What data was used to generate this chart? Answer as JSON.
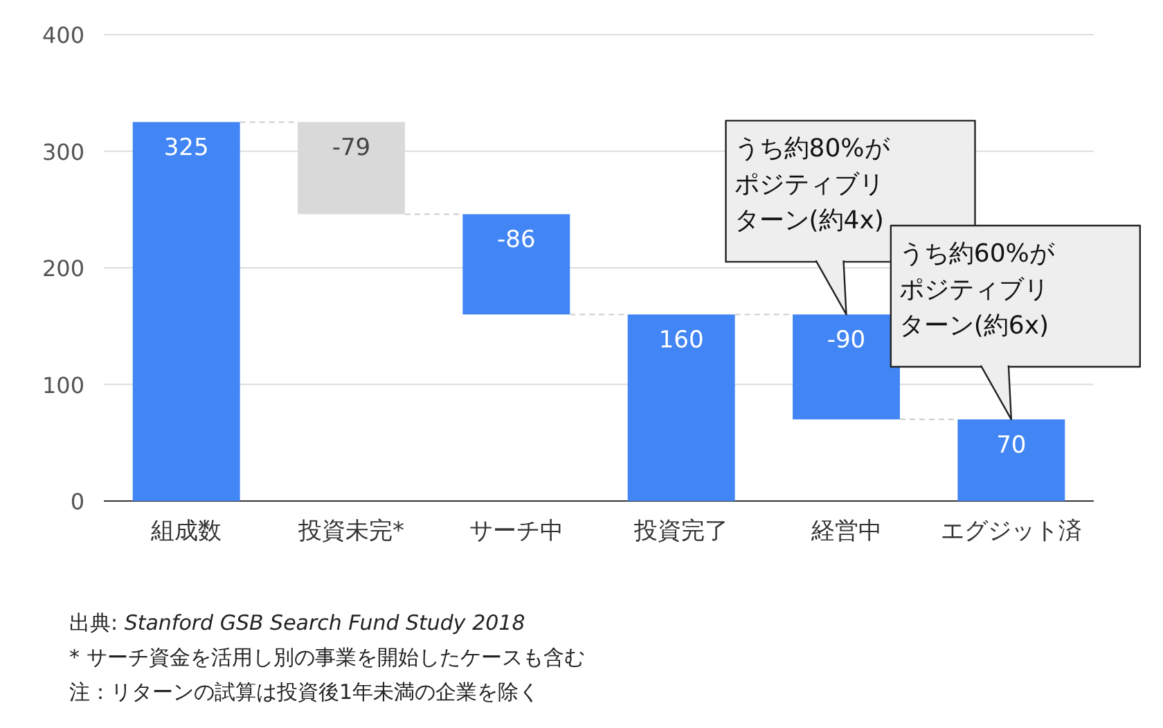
{
  "chart_data": {
    "type": "bar",
    "categories": [
      "組成数",
      "投資未完*",
      "サーチ中",
      "投資完了",
      "経営中",
      "エグジット済"
    ],
    "values": [
      325,
      -79,
      -86,
      160,
      -90,
      70
    ],
    "base": [
      0,
      325,
      246,
      0,
      160,
      0
    ],
    "colors": [
      "#4285f4",
      "#d9d9d9",
      "#4285f4",
      "#4285f4",
      "#4285f4",
      "#4285f4"
    ],
    "data_labels": true,
    "ylim": [
      0,
      400
    ],
    "yticks": [
      0,
      100,
      200,
      300,
      400
    ],
    "grid": "y",
    "annotations": [
      "うち約80%がポジティブリターン(約4x)",
      "うち約60%がポジティブリターン(約6x)",
      "出典: *Stanford GSB Search Fund Study 2018*",
      "* サーチ資金を活用し別の事業を開始したケースも含む",
      "注：リターンの試算は投資後1年未満の企業を除く"
    ]
  }
}
